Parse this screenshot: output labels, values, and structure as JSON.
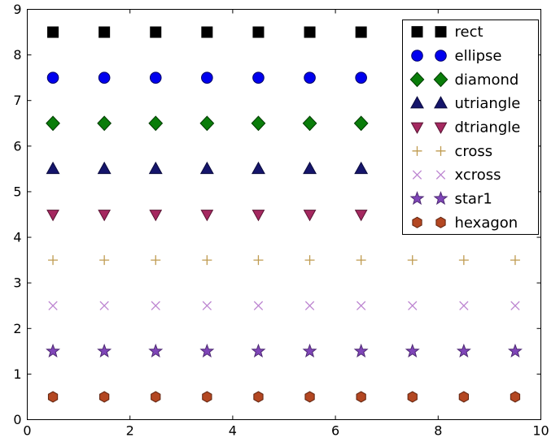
{
  "figure": {
    "background": "#ffffff",
    "border_color": "#000000"
  },
  "chart_data": {
    "type": "scatter",
    "title": "",
    "xlabel": "",
    "ylabel": "",
    "xlim": [
      0,
      10
    ],
    "ylim": [
      0,
      9
    ],
    "xticks": [
      0,
      2,
      4,
      6,
      8,
      10
    ],
    "yticks": [
      0,
      1,
      2,
      3,
      4,
      5,
      6,
      7,
      8,
      9
    ],
    "grid": false,
    "x": [
      0.5,
      1.5,
      2.5,
      3.5,
      4.5,
      5.5,
      6.5,
      7.5,
      8.5,
      9.5
    ],
    "series": [
      {
        "name": "rect",
        "marker": "rect",
        "y": 8.5,
        "color": "#000000",
        "edge": "#000000"
      },
      {
        "name": "ellipse",
        "marker": "ellipse",
        "y": 7.5,
        "color": "#0000ee",
        "edge": "#000066"
      },
      {
        "name": "diamond",
        "marker": "diamond",
        "y": 6.5,
        "color": "#0a7d0a",
        "edge": "#013a01"
      },
      {
        "name": "utriangle",
        "marker": "utriangle",
        "y": 5.5,
        "color": "#15156b",
        "edge": "#0b0b3d"
      },
      {
        "name": "dtriangle",
        "marker": "dtriangle",
        "y": 4.5,
        "color": "#a52860",
        "edge": "#571432"
      },
      {
        "name": "cross",
        "marker": "cross",
        "y": 3.5,
        "color": "#bf9b50",
        "edge": "#bf9b50"
      },
      {
        "name": "xcross",
        "marker": "xcross",
        "y": 2.5,
        "color": "#bd86d1",
        "edge": "#bd86d1"
      },
      {
        "name": "star1",
        "marker": "star1",
        "y": 1.5,
        "color": "#7f45b8",
        "edge": "#4e2a73"
      },
      {
        "name": "hexagon",
        "marker": "hexagon",
        "y": 0.5,
        "color": "#b34722",
        "edge": "#5f230f"
      }
    ],
    "legend": {
      "position": "upper right",
      "numpoints": 2,
      "background": "#ffffff",
      "border_color": "#000000",
      "entries": [
        "rect",
        "ellipse",
        "diamond",
        "utriangle",
        "dtriangle",
        "cross",
        "xcross",
        "star1",
        "hexagon"
      ]
    }
  }
}
